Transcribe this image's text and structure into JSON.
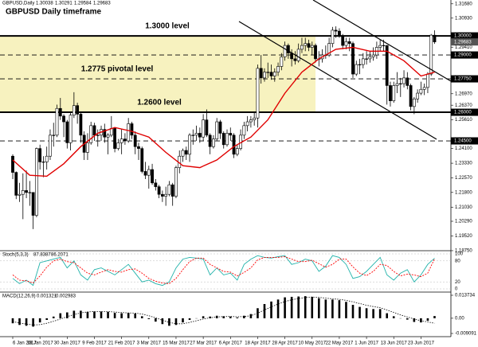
{
  "chart_data": {
    "type": "candlestick",
    "symbol": "GBPUSD,Daily",
    "title": "GBPUSD Daily timeframe",
    "categories": [
      "6 Jan 2017",
      null,
      null,
      null,
      null,
      null,
      null,
      null,
      "18 Jan 2017",
      null,
      null,
      null,
      null,
      null,
      null,
      null,
      "30 Jan 2017",
      null,
      null,
      null,
      null,
      null,
      null,
      null,
      "9 Feb 2017",
      null,
      null,
      null,
      null,
      null,
      null,
      null,
      "21 Feb 2017",
      null,
      null,
      null,
      null,
      null,
      null,
      null,
      "3 Mar 2017",
      null,
      null,
      null,
      null,
      null,
      null,
      null,
      "15 Mar 2017",
      null,
      null,
      null,
      null,
      null,
      null,
      null,
      "27 Mar 2017",
      null,
      null,
      null,
      null,
      null,
      null,
      null,
      "6 Apr 2017",
      null,
      null,
      null,
      null,
      null,
      null,
      null,
      "18 Apr 2017",
      null,
      null,
      null,
      null,
      null,
      null,
      null,
      "28 Apr 2017",
      null,
      null,
      null,
      null,
      null,
      null,
      null,
      "10 May 2017",
      null,
      null,
      null,
      null,
      null,
      null,
      null,
      "22 May 2017",
      null,
      null,
      null,
      null,
      null,
      null,
      null,
      "1 Jun 2017",
      null,
      null,
      null,
      null,
      null,
      null,
      null,
      "13 Jun 2017",
      null,
      null,
      null,
      null,
      null,
      null,
      null,
      "23 Jun 2017",
      null,
      null,
      null,
      null
    ],
    "candles": [
      [
        1.237,
        1.238,
        1.225,
        1.2285
      ],
      [
        1.2285,
        1.229,
        1.2145,
        1.2165
      ],
      [
        1.2165,
        1.223,
        1.213,
        1.217
      ],
      [
        1.217,
        1.228,
        1.204,
        1.219
      ],
      [
        1.219,
        1.2295,
        1.215,
        1.218
      ],
      [
        1.218,
        1.224,
        1.211,
        1.218
      ],
      [
        1.218,
        1.218,
        1.1988,
        1.206
      ],
      [
        1.206,
        1.2415,
        1.205,
        1.241
      ],
      [
        1.241,
        1.243,
        1.23,
        1.234
      ],
      [
        1.234,
        1.237,
        1.226,
        1.234
      ],
      [
        1.234,
        1.242,
        1.23,
        1.237
      ],
      [
        1.237,
        1.251,
        1.235,
        1.248
      ],
      [
        1.248,
        1.2545,
        1.242,
        1.248
      ],
      [
        1.248,
        1.264,
        1.247,
        1.262
      ],
      [
        1.262,
        1.2675,
        1.256,
        1.258
      ],
      [
        1.258,
        1.259,
        1.247,
        1.255
      ],
      [
        1.255,
        1.256,
        1.241,
        1.244
      ],
      [
        1.244,
        1.26,
        1.24,
        1.2585
      ],
      [
        1.2585,
        1.2705,
        1.257,
        1.2635
      ],
      [
        1.2635,
        1.265,
        1.254,
        1.259
      ],
      [
        1.259,
        1.26,
        1.244,
        1.248
      ],
      [
        1.248,
        1.25,
        1.235,
        1.239
      ],
      [
        1.239,
        1.249,
        1.235,
        1.244
      ],
      [
        1.244,
        1.255,
        1.243,
        1.253
      ],
      [
        1.253,
        1.2545,
        1.245,
        1.248
      ],
      [
        1.248,
        1.251,
        1.242,
        1.248
      ],
      [
        1.248,
        1.253,
        1.245,
        1.251
      ],
      [
        1.251,
        1.254,
        1.244,
        1.247
      ],
      [
        1.247,
        1.249,
        1.238,
        1.248
      ],
      [
        1.248,
        1.258,
        1.247,
        1.2515
      ],
      [
        1.2515,
        1.252,
        1.239,
        1.241
      ],
      [
        1.241,
        1.246,
        1.24,
        1.244
      ],
      [
        1.244,
        1.251,
        1.238,
        1.246
      ],
      [
        1.246,
        1.249,
        1.243,
        1.245
      ],
      [
        1.245,
        1.257,
        1.244,
        1.254
      ],
      [
        1.254,
        1.255,
        1.246,
        1.248
      ],
      [
        1.248,
        1.25,
        1.238,
        1.242
      ],
      [
        1.242,
        1.244,
        1.235,
        1.241
      ],
      [
        1.241,
        1.242,
        1.228,
        1.229
      ],
      [
        1.229,
        1.234,
        1.225,
        1.227
      ],
      [
        1.227,
        1.232,
        1.22,
        1.23
      ],
      [
        1.23,
        1.233,
        1.222,
        1.223
      ],
      [
        1.223,
        1.225,
        1.219,
        1.221
      ],
      [
        1.221,
        1.222,
        1.215,
        1.217
      ],
      [
        1.217,
        1.219,
        1.213,
        1.216
      ],
      [
        1.216,
        1.221,
        1.211,
        1.217
      ],
      [
        1.217,
        1.224,
        1.216,
        1.222
      ],
      [
        1.222,
        1.223,
        1.211,
        1.216
      ],
      [
        1.216,
        1.232,
        1.215,
        1.231
      ],
      [
        1.231,
        1.24,
        1.228,
        1.237
      ],
      [
        1.237,
        1.241,
        1.234,
        1.24
      ],
      [
        1.24,
        1.242,
        1.235,
        1.238
      ],
      [
        1.238,
        1.249,
        1.234,
        1.248
      ],
      [
        1.248,
        1.251,
        1.243,
        1.248
      ],
      [
        1.248,
        1.253,
        1.245,
        1.249
      ],
      [
        1.249,
        1.252,
        1.244,
        1.247
      ],
      [
        1.247,
        1.259,
        1.245,
        1.256
      ],
      [
        1.256,
        1.2615,
        1.247,
        1.248
      ],
      [
        1.248,
        1.249,
        1.238,
        1.242
      ],
      [
        1.242,
        1.248,
        1.241,
        1.246
      ],
      [
        1.246,
        1.257,
        1.245,
        1.255
      ],
      [
        1.255,
        1.256,
        1.246,
        1.249
      ],
      [
        1.249,
        1.25,
        1.241,
        1.243
      ],
      [
        1.243,
        1.251,
        1.242,
        1.249
      ],
      [
        1.249,
        1.252,
        1.245,
        1.248
      ],
      [
        1.248,
        1.249,
        1.236,
        1.238
      ],
      [
        1.238,
        1.243,
        1.237,
        1.241
      ],
      [
        1.241,
        1.251,
        1.24,
        1.248
      ],
      [
        1.248,
        1.255,
        1.246,
        1.253
      ],
      [
        1.253,
        1.258,
        1.25,
        1.255
      ],
      [
        1.255,
        1.258,
        1.252,
        1.256
      ],
      [
        1.256,
        1.26,
        1.253,
        1.257
      ],
      [
        1.257,
        1.285,
        1.252,
        1.283
      ],
      [
        1.283,
        1.29,
        1.275,
        1.278
      ],
      [
        1.278,
        1.283,
        1.276,
        1.281
      ],
      [
        1.281,
        1.286,
        1.278,
        1.281
      ],
      [
        1.281,
        1.285,
        1.277,
        1.279
      ],
      [
        1.279,
        1.283,
        1.276,
        1.281
      ],
      [
        1.281,
        1.286,
        1.279,
        1.284
      ],
      [
        1.284,
        1.291,
        1.282,
        1.289
      ],
      [
        1.289,
        1.297,
        1.287,
        1.295
      ],
      [
        1.295,
        1.296,
        1.288,
        1.291
      ],
      [
        1.291,
        1.293,
        1.284,
        1.288
      ],
      [
        1.288,
        1.292,
        1.285,
        1.287
      ],
      [
        1.287,
        1.296,
        1.286,
        1.293
      ],
      [
        1.293,
        1.299,
        1.291,
        1.295
      ],
      [
        1.295,
        1.299,
        1.292,
        1.296
      ],
      [
        1.296,
        1.298,
        1.292,
        1.294
      ],
      [
        1.294,
        1.297,
        1.29,
        1.295
      ],
      [
        1.295,
        1.296,
        1.286,
        1.288
      ],
      [
        1.288,
        1.292,
        1.284,
        1.288
      ],
      [
        1.288,
        1.293,
        1.286,
        1.29
      ],
      [
        1.29,
        1.295,
        1.288,
        1.29
      ],
      [
        1.29,
        1.299,
        1.289,
        1.296
      ],
      [
        1.296,
        1.3047,
        1.294,
        1.303
      ],
      [
        1.303,
        1.305,
        1.299,
        1.3025
      ],
      [
        1.3025,
        1.304,
        1.299,
        1.3
      ],
      [
        1.3,
        1.301,
        1.293,
        1.295
      ],
      [
        1.295,
        1.299,
        1.293,
        1.297
      ],
      [
        1.297,
        1.299,
        1.292,
        1.296
      ],
      [
        1.296,
        1.297,
        1.278,
        1.28
      ],
      [
        1.28,
        1.287,
        1.279,
        1.285
      ],
      [
        1.285,
        1.288,
        1.28,
        1.285
      ],
      [
        1.285,
        1.291,
        1.283,
        1.288
      ],
      [
        1.288,
        1.292,
        1.285,
        1.288
      ],
      [
        1.288,
        1.292,
        1.286,
        1.289
      ],
      [
        1.289,
        1.294,
        1.287,
        1.29
      ],
      [
        1.29,
        1.297,
        1.288,
        1.294
      ],
      [
        1.294,
        1.298,
        1.292,
        1.295
      ],
      [
        1.295,
        1.298,
        1.292,
        1.295
      ],
      [
        1.295,
        1.295,
        1.264,
        1.274
      ],
      [
        1.274,
        1.276,
        1.263,
        1.266
      ],
      [
        1.266,
        1.276,
        1.265,
        1.274
      ],
      [
        1.274,
        1.281,
        1.27,
        1.275
      ],
      [
        1.275,
        1.278,
        1.268,
        1.275
      ],
      [
        1.275,
        1.282,
        1.273,
        1.278
      ],
      [
        1.278,
        1.281,
        1.272,
        1.274
      ],
      [
        1.274,
        1.275,
        1.261,
        1.263
      ],
      [
        1.263,
        1.268,
        1.259,
        1.267
      ],
      [
        1.267,
        1.272,
        1.265,
        1.27
      ],
      [
        1.27,
        1.276,
        1.269,
        1.272
      ],
      [
        1.272,
        1.275,
        1.269,
        1.273
      ],
      [
        1.273,
        1.281,
        1.27,
        1.28
      ],
      [
        1.28,
        1.301,
        1.279,
        1.3004
      ],
      [
        1.30038,
        1.30291,
        1.29584,
        1.29683
      ]
    ],
    "bull_color": "#ffffff",
    "bear_color": "#000000",
    "ylim": [
      1.1879,
      1.3188
    ],
    "yticks": [
      {
        "value": 1.3168,
        "label": "1.31680"
      },
      {
        "value": 1.3093,
        "label": "1.30930"
      },
      {
        "value": 1.2941,
        "label": "1.29410"
      },
      {
        "value": 1.2697,
        "label": "1.26970"
      },
      {
        "value": 1.2637,
        "label": "1.26370"
      },
      {
        "value": 1.2561,
        "label": "1.25610"
      },
      {
        "value": 1.241,
        "label": "1.24100"
      },
      {
        "value": 1.2333,
        "label": "1.23330"
      },
      {
        "value": 1.2257,
        "label": "1.22570"
      },
      {
        "value": 1.218,
        "label": "1.21800"
      },
      {
        "value": 1.2103,
        "label": "1.21030"
      },
      {
        "value": 1.2029,
        "label": "1.20290"
      },
      {
        "value": 1.1952,
        "label": "1.19520"
      },
      {
        "value": 1.1875,
        "label": "1.18750"
      }
    ],
    "ma": {
      "color": "#e00000",
      "x": [
        0,
        5,
        10,
        15,
        20,
        25,
        30,
        35,
        40,
        45,
        50,
        55,
        60,
        65,
        70,
        75,
        80,
        85,
        90,
        95,
        100,
        105,
        110,
        115,
        120,
        124
      ],
      "values": [
        1.235,
        1.227,
        1.2265,
        1.233,
        1.242,
        1.249,
        1.252,
        1.25,
        1.247,
        1.239,
        1.232,
        1.231,
        1.235,
        1.242,
        1.247,
        1.256,
        1.27,
        1.281,
        1.288,
        1.293,
        1.294,
        1.292,
        1.292,
        1.287,
        1.279,
        1.281
      ]
    },
    "zone": {
      "x": [
        0,
        89
      ],
      "y": [
        1.26,
        1.3
      ],
      "color": "#f7f2bf"
    },
    "levels": [
      {
        "value": 1.3,
        "label": "1.30000",
        "style": "solid",
        "annotation": "1.3000 level"
      },
      {
        "value": 1.29,
        "label": "1.29000",
        "style": "dashed"
      },
      {
        "value": 1.2775,
        "label": "1.27750",
        "style": "dashed",
        "annotation": "1.2775 pivotal level"
      },
      {
        "value": 1.26,
        "label": "1.26000",
        "style": "solid",
        "annotation": "1.2600 level"
      },
      {
        "value": 1.245,
        "label": "1.24500",
        "style": "dashed"
      }
    ],
    "indicator_x": [
      0,
      2,
      4,
      6,
      8,
      10,
      12,
      14,
      16,
      18,
      20,
      22,
      24,
      26,
      28,
      30,
      32,
      34,
      36,
      38,
      40,
      42,
      44,
      46,
      48,
      50,
      52,
      54,
      56,
      58,
      60,
      62,
      64,
      66,
      68,
      70,
      72,
      74,
      76,
      78,
      80,
      82,
      84,
      86,
      88,
      90,
      92,
      94,
      96,
      98,
      100,
      102,
      104,
      106,
      108,
      110,
      112,
      114,
      116,
      118,
      120,
      122,
      124
    ],
    "stochastic": {
      "name": "Stoch(5,3,3)",
      "main_color": "#20b2aa",
      "signal_color": "#ff0000",
      "main": [
        30,
        15,
        25,
        10,
        75,
        80,
        85,
        90,
        60,
        80,
        40,
        25,
        55,
        60,
        50,
        40,
        55,
        70,
        45,
        20,
        25,
        15,
        10,
        20,
        60,
        85,
        90,
        88,
        85,
        40,
        60,
        40,
        45,
        25,
        70,
        85,
        95,
        90,
        88,
        92,
        95,
        70,
        75,
        85,
        80,
        50,
        65,
        95,
        90,
        70,
        30,
        35,
        50,
        70,
        90,
        40,
        25,
        45,
        55,
        20,
        40,
        70,
        87.8387
      ],
      "signal": [
        40,
        25,
        23,
        17,
        37,
        62,
        80,
        85,
        78,
        75,
        60,
        45,
        40,
        48,
        55,
        50,
        48,
        55,
        57,
        45,
        30,
        22,
        17,
        15,
        30,
        55,
        78,
        88,
        88,
        70,
        60,
        50,
        48,
        37,
        47,
        60,
        83,
        90,
        90,
        90,
        92,
        85,
        78,
        78,
        82,
        72,
        62,
        70,
        85,
        85,
        63,
        45,
        38,
        50,
        70,
        67,
        50,
        37,
        42,
        40,
        35,
        45,
        86.2071
      ],
      "ylim": [
        0,
        100
      ],
      "yticks": [
        100,
        80,
        20,
        0
      ]
    },
    "macd": {
      "name": "MACD(12,26,9)",
      "histogram_color": "#000000",
      "signal_color": "#000000",
      "histogram": [
        -0.003,
        -0.004,
        -0.0045,
        -0.005,
        -0.0025,
        -0.001,
        0.001,
        0.003,
        0.0035,
        0.0045,
        0.0045,
        0.0038,
        0.004,
        0.004,
        0.0038,
        0.0032,
        0.003,
        0.0032,
        0.0028,
        0.0012,
        -0.0005,
        -0.002,
        -0.0035,
        -0.0045,
        -0.004,
        -0.0025,
        -0.001,
        0.0,
        0.0012,
        0.001,
        0.0015,
        0.0012,
        0.001,
        0.0005,
        0.0015,
        0.0025,
        0.006,
        0.0085,
        0.01,
        0.0112,
        0.0125,
        0.0128,
        0.013,
        0.0132,
        0.0128,
        0.012,
        0.0112,
        0.0112,
        0.0108,
        0.0098,
        0.008,
        0.0068,
        0.006,
        0.0055,
        0.0055,
        0.003,
        0.0012,
        0.0,
        -0.0008,
        -0.0022,
        -0.0025,
        -0.0015,
        0.001321
      ],
      "signal": [
        -0.002,
        -0.0028,
        -0.0035,
        -0.004,
        -0.0038,
        -0.003,
        -0.0018,
        -0.0005,
        0.001,
        0.0022,
        0.0032,
        0.0038,
        0.004,
        0.004,
        0.004,
        0.0037,
        0.0034,
        0.0032,
        0.0031,
        0.0025,
        0.0015,
        0.0003,
        -0.0012,
        -0.0025,
        -0.0033,
        -0.0033,
        -0.0025,
        -0.0015,
        -0.0005,
        0.0003,
        0.0008,
        0.001,
        0.0011,
        0.0009,
        0.001,
        0.0015,
        0.003,
        0.005,
        0.0068,
        0.0085,
        0.01,
        0.011,
        0.0118,
        0.0124,
        0.0127,
        0.0125,
        0.012,
        0.0116,
        0.0113,
        0.0107,
        0.0098,
        0.0088,
        0.0078,
        0.007,
        0.0063,
        0.005,
        0.0035,
        0.002,
        0.0008,
        -0.0005,
        -0.0015,
        -0.0022,
        -0.002983
      ],
      "ylim": [
        -0.009091,
        0.013734
      ],
      "yticks": [
        0.013734,
        {
          "value": 0,
          "label": "0.00"
        },
        -0.009091
      ]
    }
  }
}
